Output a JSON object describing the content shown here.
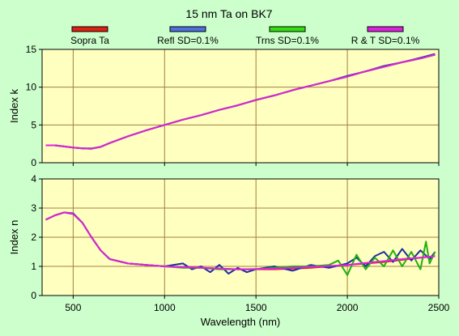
{
  "title": "15 nm Ta on BK7",
  "legend": [
    {
      "label": "Sopra Ta",
      "color": "#e02010"
    },
    {
      "label": "Refl SD=0.1%",
      "color": "#5070e0"
    },
    {
      "label": "Trns SD=0.1%",
      "color": "#30e010"
    },
    {
      "label": "R & T SD=0.1%",
      "color": "#e020e0"
    }
  ],
  "colors": {
    "background": "#ccffcc",
    "plot_area": "#ffffc0",
    "grid": "#a08040"
  },
  "chart_data": [
    {
      "type": "line",
      "ylabel": "Index k",
      "xlim": [
        330,
        2500
      ],
      "ylim": [
        0,
        15
      ],
      "yticks": [
        0,
        5,
        10,
        15
      ],
      "grid": true,
      "series": [
        {
          "name": "Sopra Ta",
          "color": "#e02010",
          "x": [
            350,
            400,
            450,
            500,
            550,
            600,
            650,
            700,
            800,
            900,
            1000,
            1100,
            1200,
            1300,
            1400,
            1500,
            1600,
            1700,
            1800,
            1900,
            2000,
            2100,
            2200,
            2300,
            2400,
            2480
          ],
          "y": [
            2.3,
            2.3,
            2.15,
            2.0,
            1.9,
            1.85,
            2.1,
            2.6,
            3.5,
            4.3,
            5.0,
            5.7,
            6.3,
            7.0,
            7.6,
            8.3,
            8.9,
            9.6,
            10.2,
            10.8,
            11.4,
            12.1,
            12.7,
            13.3,
            13.8,
            14.3
          ]
        },
        {
          "name": "Refl SD=0.1%",
          "color": "#1a2fa0",
          "x": [
            350,
            400,
            450,
            500,
            550,
            600,
            650,
            700,
            800,
            900,
            1000,
            1100,
            1200,
            1300,
            1400,
            1500,
            1600,
            1700,
            1800,
            1900,
            2000,
            2100,
            2200,
            2300,
            2400,
            2480
          ],
          "y": [
            2.3,
            2.3,
            2.15,
            2.0,
            1.9,
            1.9,
            2.1,
            2.6,
            3.5,
            4.3,
            5.0,
            5.7,
            6.3,
            7.0,
            7.6,
            8.3,
            8.9,
            9.6,
            10.2,
            10.8,
            11.5,
            12.1,
            12.8,
            13.3,
            13.9,
            14.4
          ]
        },
        {
          "name": "Trns SD=0.1%",
          "color": "#20b010",
          "x": [
            350,
            400,
            450,
            500,
            550,
            600,
            650,
            700,
            800,
            900,
            1000,
            1100,
            1200,
            1300,
            1400,
            1500,
            1600,
            1700,
            1800,
            1900,
            2000,
            2100,
            2200,
            2300,
            2400,
            2480
          ],
          "y": [
            2.3,
            2.3,
            2.15,
            2.0,
            1.9,
            1.85,
            2.1,
            2.6,
            3.5,
            4.3,
            5.0,
            5.7,
            6.3,
            7.0,
            7.6,
            8.3,
            8.9,
            9.6,
            10.2,
            10.8,
            11.4,
            12.1,
            12.7,
            13.3,
            13.8,
            14.3
          ]
        },
        {
          "name": "R & T SD=0.1%",
          "color": "#e020e0",
          "x": [
            350,
            400,
            450,
            500,
            550,
            600,
            650,
            700,
            800,
            900,
            1000,
            1100,
            1200,
            1300,
            1400,
            1500,
            1600,
            1700,
            1800,
            1900,
            2000,
            2100,
            2200,
            2300,
            2400,
            2480
          ],
          "y": [
            2.3,
            2.3,
            2.15,
            2.0,
            1.9,
            1.85,
            2.1,
            2.6,
            3.5,
            4.3,
            5.0,
            5.7,
            6.3,
            7.0,
            7.6,
            8.3,
            8.9,
            9.6,
            10.2,
            10.8,
            11.4,
            12.1,
            12.7,
            13.3,
            13.8,
            14.3
          ]
        }
      ]
    },
    {
      "type": "line",
      "xlabel": "Wavelength (nm)",
      "ylabel": "Index n",
      "xlim": [
        330,
        2500
      ],
      "ylim": [
        0,
        4
      ],
      "xticks": [
        500,
        1000,
        1500,
        2000,
        2500
      ],
      "yticks": [
        0,
        1,
        2,
        3,
        4
      ],
      "grid": true,
      "series": [
        {
          "name": "Sopra Ta",
          "color": "#e02010",
          "x": [
            350,
            400,
            450,
            500,
            550,
            600,
            650,
            700,
            800,
            900,
            1000,
            1200,
            1400,
            1600,
            1800,
            2000,
            2200,
            2400,
            2480
          ],
          "y": [
            2.6,
            2.75,
            2.85,
            2.8,
            2.5,
            2.0,
            1.55,
            1.25,
            1.1,
            1.05,
            1.0,
            0.95,
            0.9,
            0.9,
            0.95,
            1.05,
            1.15,
            1.3,
            1.35
          ]
        },
        {
          "name": "Refl SD=0.1%",
          "color": "#1a2fa0",
          "x": [
            350,
            400,
            450,
            500,
            550,
            600,
            650,
            700,
            800,
            900,
            1000,
            1100,
            1150,
            1200,
            1250,
            1300,
            1350,
            1400,
            1450,
            1500,
            1600,
            1700,
            1800,
            1900,
            2000,
            2050,
            2100,
            2150,
            2200,
            2250,
            2300,
            2350,
            2400,
            2450,
            2480
          ],
          "y": [
            2.6,
            2.75,
            2.85,
            2.82,
            2.5,
            2.0,
            1.55,
            1.25,
            1.1,
            1.05,
            1.0,
            1.1,
            0.9,
            1.0,
            0.8,
            1.05,
            0.75,
            0.95,
            0.8,
            0.9,
            1.0,
            0.85,
            1.05,
            0.95,
            1.1,
            1.3,
            1.0,
            1.35,
            1.5,
            1.15,
            1.6,
            1.2,
            1.55,
            1.25,
            1.5
          ]
        },
        {
          "name": "Trns SD=0.1%",
          "color": "#20b010",
          "x": [
            350,
            400,
            450,
            500,
            550,
            600,
            650,
            700,
            800,
            900,
            1000,
            1100,
            1200,
            1300,
            1400,
            1500,
            1600,
            1700,
            1800,
            1900,
            1950,
            2000,
            2050,
            2100,
            2150,
            2200,
            2250,
            2300,
            2350,
            2400,
            2430,
            2450,
            2480
          ],
          "y": [
            2.6,
            2.75,
            2.85,
            2.8,
            2.5,
            2.0,
            1.55,
            1.25,
            1.1,
            1.05,
            1.0,
            0.95,
            0.95,
            0.9,
            0.9,
            0.9,
            0.95,
            1.0,
            1.0,
            1.05,
            1.2,
            0.7,
            1.4,
            0.9,
            1.3,
            1.0,
            1.55,
            1.0,
            1.5,
            0.9,
            1.85,
            1.1,
            1.5
          ]
        },
        {
          "name": "R & T SD=0.1%",
          "color": "#e020e0",
          "x": [
            350,
            400,
            450,
            500,
            550,
            600,
            650,
            700,
            800,
            900,
            1000,
            1200,
            1400,
            1600,
            1800,
            2000,
            2100,
            2200,
            2300,
            2400,
            2480
          ],
          "y": [
            2.6,
            2.75,
            2.85,
            2.8,
            2.5,
            2.0,
            1.55,
            1.25,
            1.1,
            1.05,
            1.0,
            0.95,
            0.9,
            0.92,
            0.98,
            1.05,
            1.12,
            1.18,
            1.25,
            1.3,
            1.35
          ]
        }
      ]
    }
  ]
}
